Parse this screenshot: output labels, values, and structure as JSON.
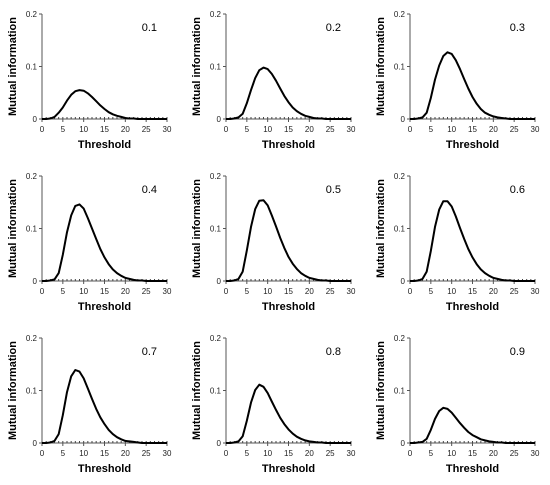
{
  "chart_data": [
    {
      "type": "line",
      "panel_label": "0.1",
      "xlabel": "Threshold",
      "ylabel": "Mutual information",
      "xlim": [
        0,
        30
      ],
      "ylim": [
        0,
        0.2
      ],
      "xticks": [
        "0",
        "5",
        "10",
        "15",
        "20",
        "25",
        "30"
      ],
      "yticks": [
        "0",
        "0.1",
        "0.2"
      ],
      "x": [
        0,
        1,
        2,
        3,
        4,
        5,
        6,
        7,
        8,
        9,
        10,
        11,
        12,
        13,
        14,
        15,
        16,
        17,
        18,
        19,
        20,
        21,
        22,
        23,
        24,
        25,
        26,
        27,
        28,
        29,
        30
      ],
      "values": [
        0,
        0,
        0.001,
        0.004,
        0.012,
        0.022,
        0.035,
        0.046,
        0.053,
        0.055,
        0.054,
        0.049,
        0.042,
        0.034,
        0.026,
        0.019,
        0.013,
        0.009,
        0.006,
        0.004,
        0.002,
        0.001,
        0.001,
        0,
        0,
        0,
        0,
        0,
        0,
        0,
        0
      ]
    },
    {
      "type": "line",
      "panel_label": "0.2",
      "xlabel": "Threshold",
      "ylabel": "Mutual information",
      "xlim": [
        0,
        30
      ],
      "ylim": [
        0,
        0.2
      ],
      "xticks": [
        "0",
        "5",
        "10",
        "15",
        "20",
        "25",
        "30"
      ],
      "yticks": [
        "0",
        "0.1",
        "0.2"
      ],
      "x": [
        0,
        1,
        2,
        3,
        4,
        5,
        6,
        7,
        8,
        9,
        10,
        11,
        12,
        13,
        14,
        15,
        16,
        17,
        18,
        19,
        20,
        21,
        22,
        23,
        24,
        25,
        26,
        27,
        28,
        29,
        30
      ],
      "values": [
        0,
        0,
        0.001,
        0.003,
        0.01,
        0.03,
        0.055,
        0.078,
        0.093,
        0.098,
        0.095,
        0.086,
        0.073,
        0.058,
        0.044,
        0.032,
        0.022,
        0.015,
        0.01,
        0.006,
        0.004,
        0.002,
        0.001,
        0.001,
        0,
        0,
        0,
        0,
        0,
        0,
        0
      ]
    },
    {
      "type": "line",
      "panel_label": "0.3",
      "xlabel": "Threshold",
      "ylabel": "Mutual information",
      "xlim": [
        0,
        30
      ],
      "ylim": [
        0,
        0.2
      ],
      "xticks": [
        "0",
        "5",
        "10",
        "15",
        "20",
        "25",
        "30"
      ],
      "yticks": [
        "0",
        "0.1",
        "0.2"
      ],
      "x": [
        0,
        1,
        2,
        3,
        4,
        5,
        6,
        7,
        8,
        9,
        10,
        11,
        12,
        13,
        14,
        15,
        16,
        17,
        18,
        19,
        20,
        21,
        22,
        23,
        24,
        25,
        26,
        27,
        28,
        29,
        30
      ],
      "values": [
        0,
        0,
        0.001,
        0.003,
        0.012,
        0.04,
        0.075,
        0.102,
        0.12,
        0.127,
        0.124,
        0.112,
        0.095,
        0.076,
        0.058,
        0.042,
        0.029,
        0.019,
        0.012,
        0.008,
        0.005,
        0.003,
        0.002,
        0.001,
        0,
        0,
        0,
        0,
        0,
        0,
        0
      ]
    },
    {
      "type": "line",
      "panel_label": "0.4",
      "xlabel": "Threshold",
      "ylabel": "Mutual information",
      "xlim": [
        0,
        30
      ],
      "ylim": [
        0,
        0.2
      ],
      "xticks": [
        "0",
        "5",
        "10",
        "15",
        "20",
        "25",
        "30"
      ],
      "yticks": [
        "0",
        "0.1",
        "0.2"
      ],
      "x": [
        0,
        1,
        2,
        3,
        4,
        5,
        6,
        7,
        8,
        9,
        10,
        11,
        12,
        13,
        14,
        15,
        16,
        17,
        18,
        19,
        20,
        21,
        22,
        23,
        24,
        25,
        26,
        27,
        28,
        29,
        30
      ],
      "values": [
        0,
        0,
        0.001,
        0.003,
        0.015,
        0.05,
        0.093,
        0.125,
        0.143,
        0.146,
        0.138,
        0.12,
        0.1,
        0.08,
        0.061,
        0.045,
        0.032,
        0.022,
        0.015,
        0.01,
        0.006,
        0.004,
        0.002,
        0.001,
        0.001,
        0,
        0,
        0,
        0,
        0,
        0
      ]
    },
    {
      "type": "line",
      "panel_label": "0.5",
      "xlabel": "Threshold",
      "ylabel": "Mutual information",
      "xlim": [
        0,
        30
      ],
      "ylim": [
        0,
        0.2
      ],
      "xticks": [
        "0",
        "5",
        "10",
        "15",
        "20",
        "25",
        "30"
      ],
      "yticks": [
        "0",
        "0.1",
        "0.2"
      ],
      "x": [
        0,
        1,
        2,
        3,
        4,
        5,
        6,
        7,
        8,
        9,
        10,
        11,
        12,
        13,
        14,
        15,
        16,
        17,
        18,
        19,
        20,
        21,
        22,
        23,
        24,
        25,
        26,
        27,
        28,
        29,
        30
      ],
      "values": [
        0,
        0,
        0.001,
        0.004,
        0.018,
        0.058,
        0.103,
        0.137,
        0.153,
        0.154,
        0.144,
        0.125,
        0.104,
        0.082,
        0.063,
        0.046,
        0.033,
        0.023,
        0.015,
        0.01,
        0.006,
        0.004,
        0.002,
        0.001,
        0.001,
        0,
        0,
        0,
        0,
        0,
        0
      ]
    },
    {
      "type": "line",
      "panel_label": "0.6",
      "xlabel": "Threshold",
      "ylabel": "Mutual information",
      "xlim": [
        0,
        30
      ],
      "ylim": [
        0,
        0.2
      ],
      "xticks": [
        "0",
        "5",
        "10",
        "15",
        "20",
        "25",
        "30"
      ],
      "yticks": [
        "0",
        "0.1",
        "0.2"
      ],
      "x": [
        0,
        1,
        2,
        3,
        4,
        5,
        6,
        7,
        8,
        9,
        10,
        11,
        12,
        13,
        14,
        15,
        16,
        17,
        18,
        19,
        20,
        21,
        22,
        23,
        24,
        25,
        26,
        27,
        28,
        29,
        30
      ],
      "values": [
        0,
        0,
        0.001,
        0.004,
        0.018,
        0.057,
        0.103,
        0.136,
        0.152,
        0.152,
        0.142,
        0.123,
        0.101,
        0.08,
        0.061,
        0.045,
        0.032,
        0.022,
        0.015,
        0.01,
        0.006,
        0.004,
        0.002,
        0.001,
        0.001,
        0,
        0,
        0,
        0,
        0,
        0
      ]
    },
    {
      "type": "line",
      "panel_label": "0.7",
      "xlabel": "Threshold",
      "ylabel": "Mutual information",
      "xlim": [
        0,
        30
      ],
      "ylim": [
        0,
        0.2
      ],
      "xticks": [
        "0",
        "5",
        "10",
        "15",
        "20",
        "25",
        "30"
      ],
      "yticks": [
        "0",
        "0.1",
        "0.2"
      ],
      "x": [
        0,
        1,
        2,
        3,
        4,
        5,
        6,
        7,
        8,
        9,
        10,
        11,
        12,
        13,
        14,
        15,
        16,
        17,
        18,
        19,
        20,
        21,
        22,
        23,
        24,
        25,
        26,
        27,
        28,
        29,
        30
      ],
      "values": [
        0,
        0,
        0.001,
        0.004,
        0.017,
        0.053,
        0.097,
        0.127,
        0.139,
        0.136,
        0.123,
        0.104,
        0.084,
        0.065,
        0.049,
        0.036,
        0.025,
        0.017,
        0.011,
        0.007,
        0.004,
        0.003,
        0.002,
        0.001,
        0,
        0,
        0,
        0,
        0,
        0,
        0
      ]
    },
    {
      "type": "line",
      "panel_label": "0.8",
      "xlabel": "Threshold",
      "ylabel": "Mutual information",
      "xlim": [
        0,
        30
      ],
      "ylim": [
        0,
        0.2
      ],
      "xticks": [
        "0",
        "5",
        "10",
        "15",
        "20",
        "25",
        "30"
      ],
      "yticks": [
        "0",
        "0.1",
        "0.2"
      ],
      "x": [
        0,
        1,
        2,
        3,
        4,
        5,
        6,
        7,
        8,
        9,
        10,
        11,
        12,
        13,
        14,
        15,
        16,
        17,
        18,
        19,
        20,
        21,
        22,
        23,
        24,
        25,
        26,
        27,
        28,
        29,
        30
      ],
      "values": [
        0,
        0,
        0.001,
        0.003,
        0.013,
        0.042,
        0.077,
        0.101,
        0.111,
        0.107,
        0.095,
        0.079,
        0.063,
        0.048,
        0.036,
        0.026,
        0.018,
        0.012,
        0.008,
        0.005,
        0.003,
        0.002,
        0.001,
        0.001,
        0,
        0,
        0,
        0,
        0,
        0,
        0
      ]
    },
    {
      "type": "line",
      "panel_label": "0.9",
      "xlabel": "Threshold",
      "ylabel": "Mutual information",
      "xlim": [
        0,
        30
      ],
      "ylim": [
        0,
        0.2
      ],
      "xticks": [
        "0",
        "5",
        "10",
        "15",
        "20",
        "25",
        "30"
      ],
      "yticks": [
        "0",
        "0.1",
        "0.2"
      ],
      "x": [
        0,
        1,
        2,
        3,
        4,
        5,
        6,
        7,
        8,
        9,
        10,
        11,
        12,
        13,
        14,
        15,
        16,
        17,
        18,
        19,
        20,
        21,
        22,
        23,
        24,
        25,
        26,
        27,
        28,
        29,
        30
      ],
      "values": [
        0,
        0,
        0.001,
        0.002,
        0.008,
        0.025,
        0.046,
        0.061,
        0.067,
        0.065,
        0.058,
        0.048,
        0.038,
        0.029,
        0.021,
        0.015,
        0.011,
        0.007,
        0.005,
        0.003,
        0.002,
        0.001,
        0.001,
        0,
        0,
        0,
        0,
        0,
        0,
        0,
        0
      ]
    }
  ]
}
